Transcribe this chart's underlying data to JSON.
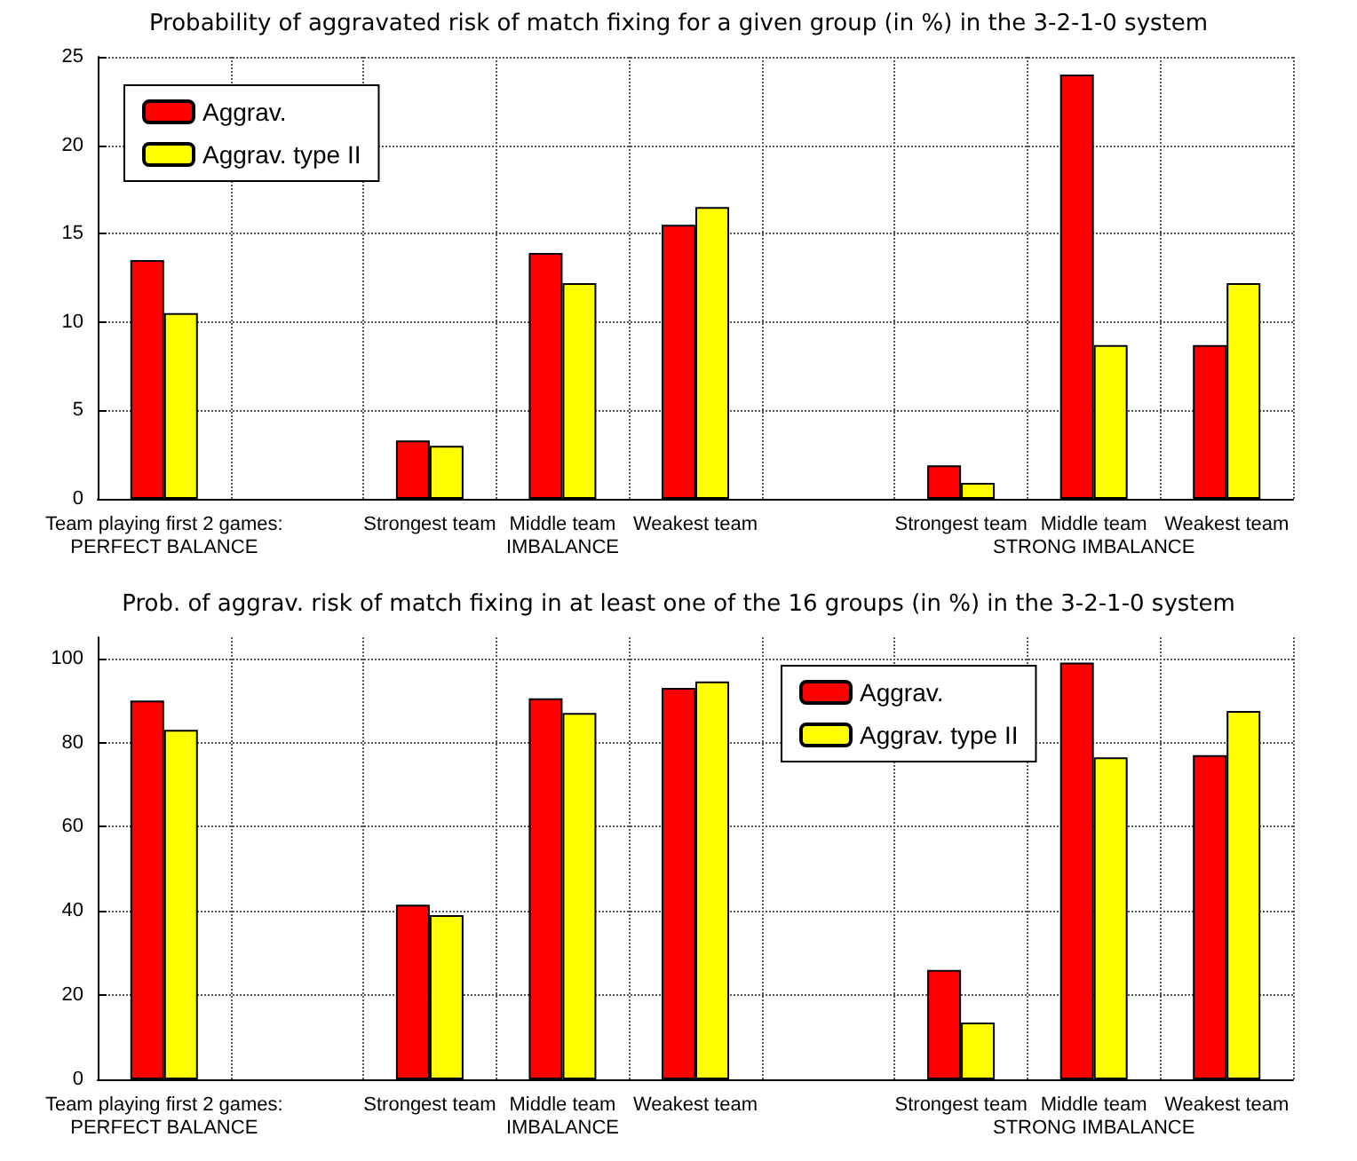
{
  "chart_data": [
    {
      "type": "bar",
      "title": "Probability of aggravated risk of match fixing for a given group (in %) in the 3-2-1-0 system",
      "categories": [
        "Team playing first 2 games:\nPERFECT BALANCE",
        null,
        "Strongest team",
        "Middle team\nIMBALANCE",
        "Weakest team",
        null,
        "Strongest team",
        "Middle team\nSTRONG IMBALANCE",
        "Weakest team"
      ],
      "series": [
        {
          "name": "Aggrav.",
          "color": "#ff0000",
          "values": [
            13.5,
            null,
            3.3,
            13.9,
            15.5,
            null,
            1.9,
            24,
            8.7
          ]
        },
        {
          "name": "Aggrav. type II",
          "color": "#ffff00",
          "values": [
            10.5,
            null,
            3.0,
            12.2,
            16.5,
            null,
            0.9,
            8.7,
            12.2
          ]
        }
      ],
      "ylim": [
        0,
        25
      ],
      "yticks": [
        0,
        5,
        10,
        15,
        20,
        25
      ],
      "grid": true,
      "legend": "top left"
    },
    {
      "type": "bar",
      "title": "Prob. of aggrav. risk of match fixing in at least one of the 16 groups (in %) in the 3-2-1-0 system",
      "categories": [
        "Team playing first 2 games:\nPERFECT BALANCE",
        null,
        "Strongest team",
        "Middle team\nIMBALANCE",
        "Weakest team",
        null,
        "Strongest team",
        "Middle team\nSTRONG IMBALANCE",
        "Weakest team"
      ],
      "series": [
        {
          "name": "Aggrav.",
          "color": "#ff0000",
          "values": [
            90,
            null,
            41.5,
            90.5,
            93,
            null,
            26,
            99,
            77
          ]
        },
        {
          "name": "Aggrav. type II",
          "color": "#ffff00",
          "values": [
            83,
            null,
            39,
            87,
            94.5,
            null,
            13.5,
            76.5,
            87.5
          ]
        }
      ],
      "ylim": [
        0,
        105
      ],
      "yticks": [
        0,
        20,
        40,
        60,
        80,
        100
      ],
      "grid": true,
      "legend": "top center"
    }
  ]
}
